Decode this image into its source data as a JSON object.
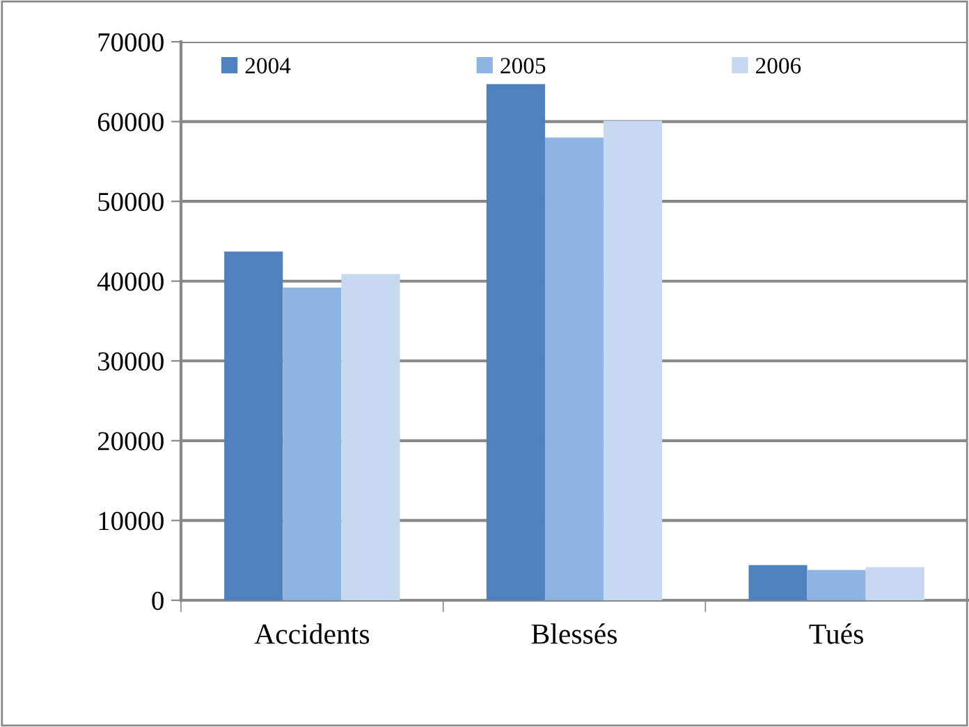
{
  "chart_data": {
    "type": "bar",
    "categories": [
      "Accidents",
      "Blessés",
      "Tués"
    ],
    "series": [
      {
        "name": "2004",
        "color": "#4f81bd",
        "values": [
          43700,
          64700,
          4400
        ]
      },
      {
        "name": "2005",
        "color": "#8eb4e3",
        "values": [
          39200,
          58000,
          3800
        ]
      },
      {
        "name": "2006",
        "color": "#c6d9f1",
        "values": [
          40900,
          60100,
          4150
        ]
      }
    ],
    "ylim": [
      0,
      70000
    ],
    "yticks": [
      0,
      10000,
      20000,
      30000,
      40000,
      50000,
      60000,
      70000
    ],
    "grid": "y",
    "legend": "top"
  }
}
